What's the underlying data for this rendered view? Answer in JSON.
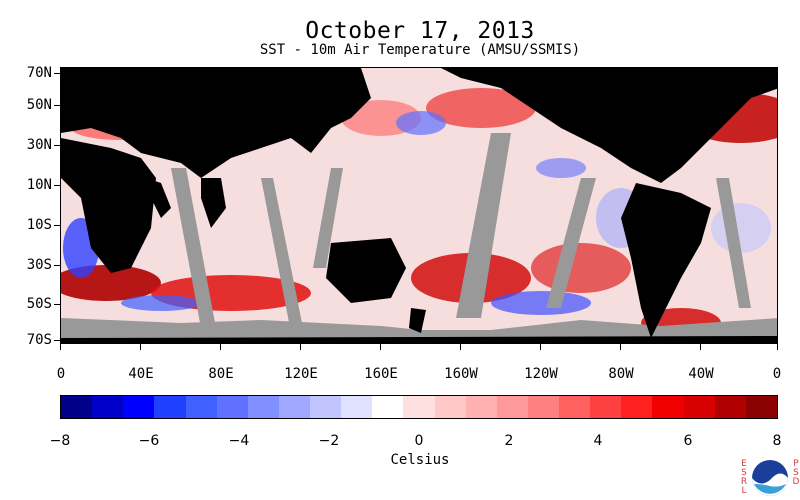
{
  "title": "October 17, 2013",
  "subtitle": "SST - 10m Air Temperature (AMSU/SSMIS)",
  "lat_labels": [
    "70N",
    "50N",
    "30N",
    "10N",
    "10S",
    "30S",
    "50S",
    "70S"
  ],
  "lon_labels": [
    "0",
    "40E",
    "80E",
    "120E",
    "160E",
    "160W",
    "120W",
    "80W",
    "40W",
    "0"
  ],
  "colorbar": {
    "colors": [
      "#00008b",
      "#0000c8",
      "#0000ff",
      "#2040ff",
      "#4060ff",
      "#6070ff",
      "#8090ff",
      "#a0a8ff",
      "#c0c4ff",
      "#e0e0ff",
      "#ffffff",
      "#ffe0e0",
      "#ffc8c8",
      "#ffb0b0",
      "#ff9898",
      "#ff8080",
      "#ff6060",
      "#ff4040",
      "#ff2020",
      "#f00000",
      "#d80000",
      "#b00000",
      "#8b0000"
    ],
    "tick_labels": [
      "−8",
      "−6",
      "−4",
      "−2",
      "0",
      "2",
      "4",
      "6",
      "8"
    ],
    "unit": "Celsius"
  },
  "colors": {
    "land": "#000000",
    "missing": "#999999"
  },
  "logo": {
    "left_text": "E\nS\nR\nL",
    "right_text": "P\nS\nD",
    "name": "NOAA"
  }
}
